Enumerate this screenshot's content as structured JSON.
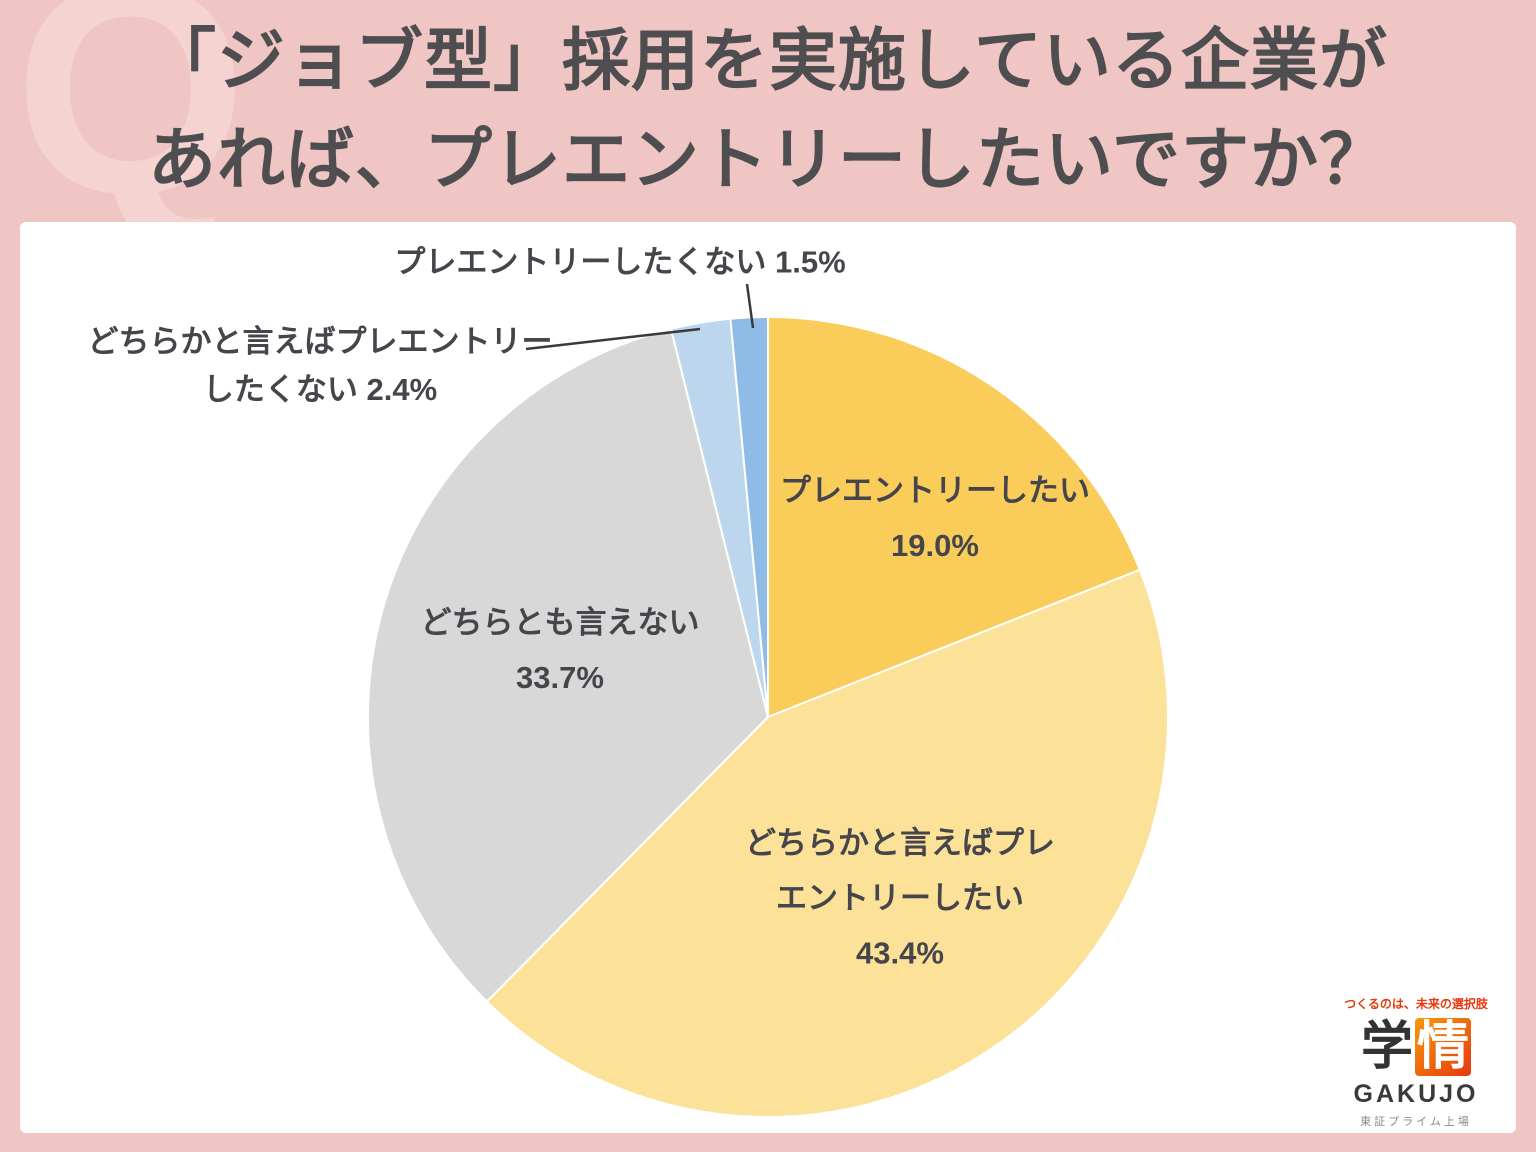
{
  "page": {
    "q_watermark": "Q",
    "title_line1": "「ジョブ型」採用を実施している企業が",
    "title_line2": "あれば、プレエントリーしたいですか？"
  },
  "chart_data": {
    "type": "pie",
    "title": "「ジョブ型」採用を実施している企業があれば、プレエントリーしたいですか？",
    "start_angle_deg": 0,
    "direction": "clockwise",
    "legend": "none",
    "segments": [
      {
        "label": "プレエントリーしたい",
        "value": 19.0,
        "display": "19.0%",
        "color": "#FACD5A"
      },
      {
        "label": "どちらかと言えばプレエントリーしたい",
        "value": 43.4,
        "display": "43.4%",
        "color": "#FBE298"
      },
      {
        "label": "どちらとも言えない",
        "value": 33.7,
        "display": "33.7%",
        "color": "#D8D8D8"
      },
      {
        "label": "どちらかと言えばプレエントリーしたくない",
        "value": 2.4,
        "display": "2.4%",
        "color": "#BCD6EE"
      },
      {
        "label": "プレエントリーしたくない",
        "value": 1.5,
        "display": "1.5%",
        "color": "#8FBCE6"
      }
    ]
  },
  "labels": {
    "not_want": {
      "text": "プレエントリーしたくない 1.5%"
    },
    "somewhat_not": {
      "line1": "どちらかと言えばプレエントリー",
      "line2": "したくない 2.4%"
    },
    "want": {
      "line1": "プレエントリーしたい",
      "line2": "19.0%"
    },
    "neutral": {
      "line1": "どちらとも言えない",
      "line2": "33.7%"
    },
    "somewhat_want": {
      "line1": "どちらかと言えばプレ",
      "line2": "エントリーしたい",
      "line3": "43.4%"
    }
  },
  "logo": {
    "tagline": "つくるのは、未来の選択肢",
    "kanji_left": "学",
    "kanji_right": "情",
    "name": "GAKUJO",
    "listing": "東証プライム上場"
  },
  "colors": {
    "background_pink": "#F0C6C4",
    "watermark_pink": "#F4D3D1",
    "title_text": "#4E4E50",
    "label_text": "#45454B",
    "panel_white": "#FFFFFF",
    "logo_red": "#E8380D"
  }
}
